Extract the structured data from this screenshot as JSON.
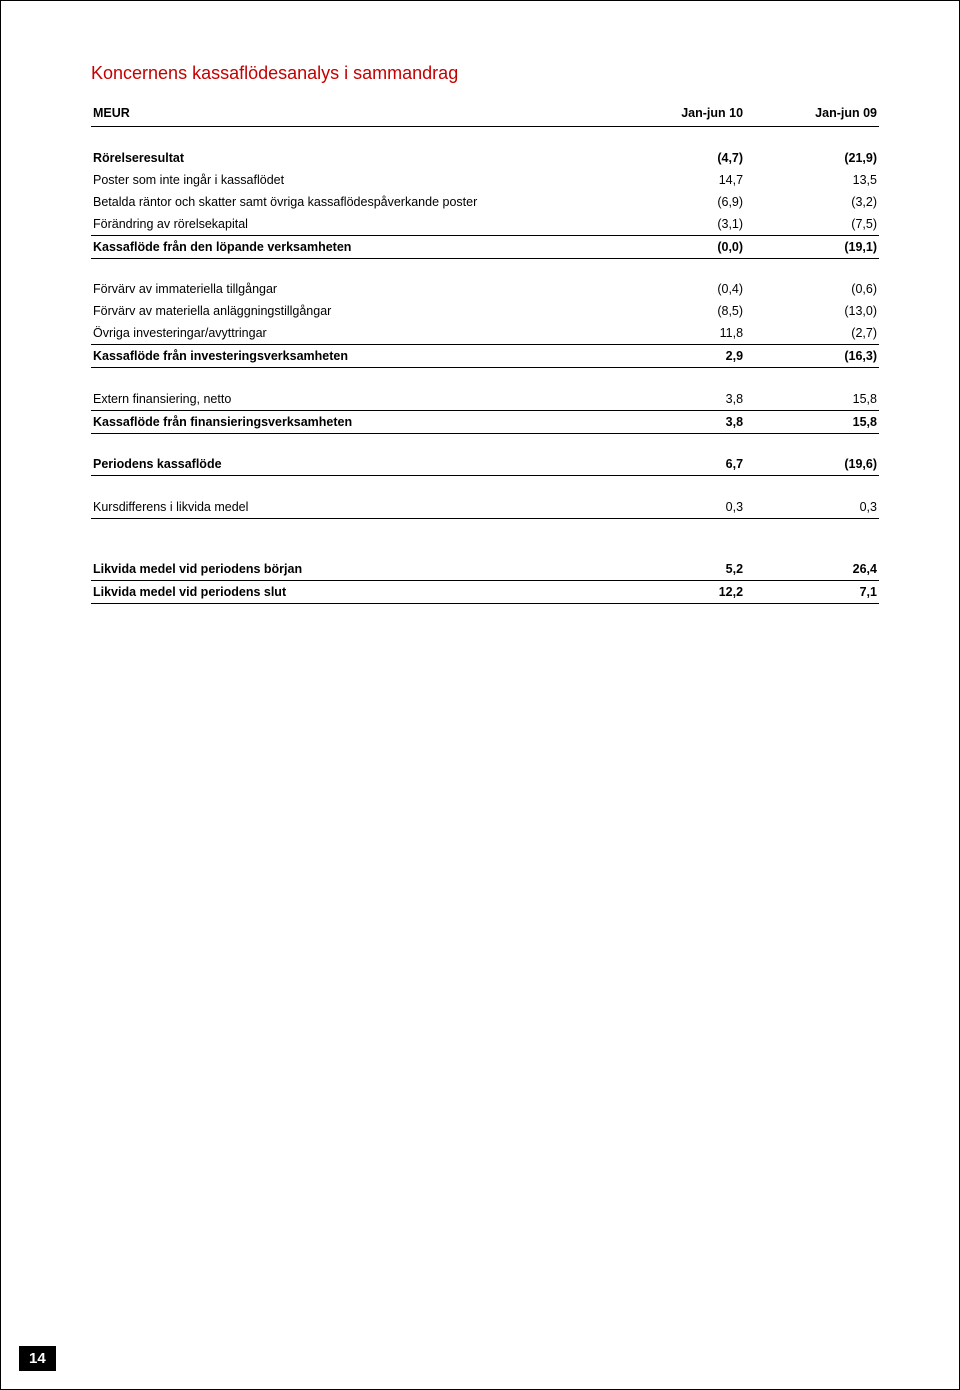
{
  "title": "Koncernens kassaflödesanalys i sammandrag",
  "page_number": "14",
  "columns": {
    "c1": "MEUR",
    "c2": "Jan-jun 10",
    "c3": "Jan-jun 09"
  },
  "rows": [
    {
      "type": "spacer"
    },
    {
      "label": "Rörelseresultat",
      "v1": "(4,7)",
      "v2": "(21,9)",
      "bold": true
    },
    {
      "label": "Poster som inte ingår i kassaflödet",
      "v1": "14,7",
      "v2": "13,5"
    },
    {
      "label": "Betalda räntor och skatter samt övriga kassaflödespåverkande poster",
      "v1": "(6,9)",
      "v2": "(3,2)"
    },
    {
      "label": "Förändring av rörelsekapital",
      "v1": "(3,1)",
      "v2": "(7,5)",
      "rule": true
    },
    {
      "label": "Kassaflöde från den löpande verksamheten",
      "v1": "(0,0)",
      "v2": "(19,1)",
      "bold": true,
      "rule": true
    },
    {
      "type": "spacer"
    },
    {
      "label": "Förvärv av immateriella tillgångar",
      "v1": "(0,4)",
      "v2": "(0,6)"
    },
    {
      "label": "Förvärv av materiella anläggningstillgångar",
      "v1": "(8,5)",
      "v2": "(13,0)"
    },
    {
      "label": "Övriga investeringar/avyttringar",
      "v1": "11,8",
      "v2": "(2,7)",
      "rule": true
    },
    {
      "label": "Kassaflöde från investeringsverksamheten",
      "v1": "2,9",
      "v2": "(16,3)",
      "bold": true,
      "rule": true
    },
    {
      "type": "spacer"
    },
    {
      "label": "Extern finansiering, netto",
      "v1": "3,8",
      "v2": "15,8",
      "rule": true
    },
    {
      "label": "Kassaflöde från finansieringsverksamheten",
      "v1": "3,8",
      "v2": "15,8",
      "bold": true,
      "rule": true
    },
    {
      "type": "spacer"
    },
    {
      "label": "Periodens kassaflöde",
      "v1": "6,7",
      "v2": "(19,6)",
      "bold": true,
      "rule": true
    },
    {
      "type": "spacer"
    },
    {
      "label": "Kursdifferens i likvida medel",
      "v1": "0,3",
      "v2": "0,3",
      "rule": true
    },
    {
      "type": "spacer"
    },
    {
      "type": "spacer"
    },
    {
      "label": "Likvida medel vid periodens början",
      "v1": "5,2",
      "v2": "26,4",
      "bold": true,
      "rule": true
    },
    {
      "label": "Likvida medel vid periodens slut",
      "v1": "12,2",
      "v2": "7,1",
      "bold": true,
      "rule": true
    }
  ]
}
